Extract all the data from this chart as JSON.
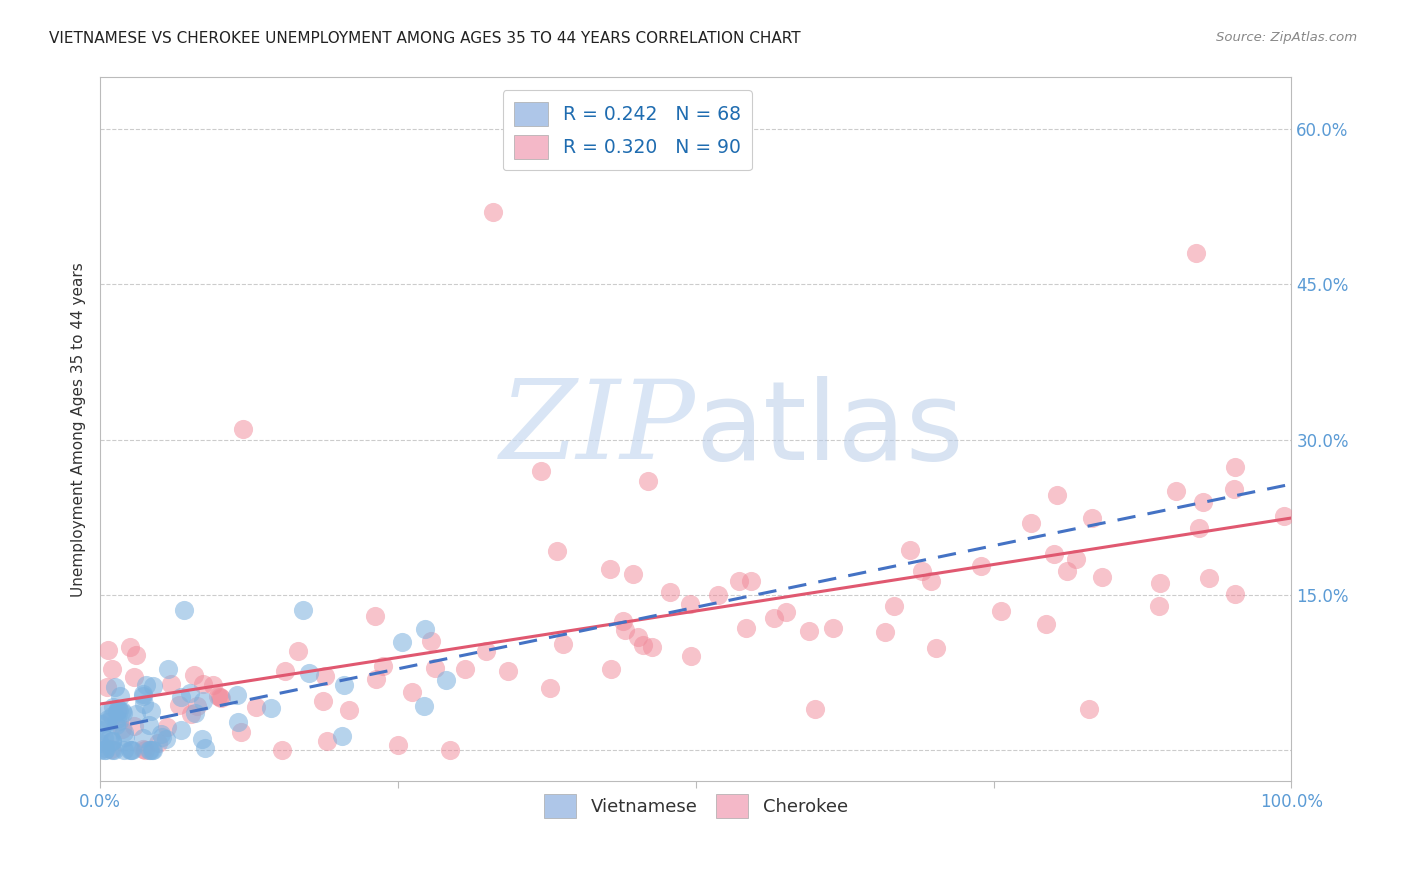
{
  "title": "VIETNAMESE VS CHEROKEE UNEMPLOYMENT AMONG AGES 35 TO 44 YEARS CORRELATION CHART",
  "source": "Source: ZipAtlas.com",
  "ylabel": "Unemployment Among Ages 35 to 44 years",
  "xlim": [
    0.0,
    1.0
  ],
  "ylim": [
    -0.03,
    0.65
  ],
  "yticks": [
    0.0,
    0.15,
    0.3,
    0.45,
    0.6
  ],
  "ytick_labels": [
    "",
    "15.0%",
    "30.0%",
    "45.0%",
    "60.0%"
  ],
  "xticks": [
    0.0,
    0.25,
    0.5,
    0.75,
    1.0
  ],
  "xtick_labels": [
    "0.0%",
    "",
    "",
    "",
    "100.0%"
  ],
  "legend_entries": [
    {
      "label": "R = 0.242   N = 68",
      "color": "#aec6e8"
    },
    {
      "label": "R = 0.320   N = 90",
      "color": "#f4b8c8"
    }
  ],
  "watermark_zip": "ZIP",
  "watermark_atlas": "atlas",
  "viet_color": "#7ab0de",
  "cherokee_color": "#f08898",
  "viet_line_color": "#4472c4",
  "cherokee_line_color": "#e05870",
  "axis_color": "#5b9bd5",
  "legend_text_color": "#1f6cb0",
  "grid_color": "#cccccc",
  "background_color": "#ffffff",
  "title_color": "#222222",
  "source_color": "#888888"
}
